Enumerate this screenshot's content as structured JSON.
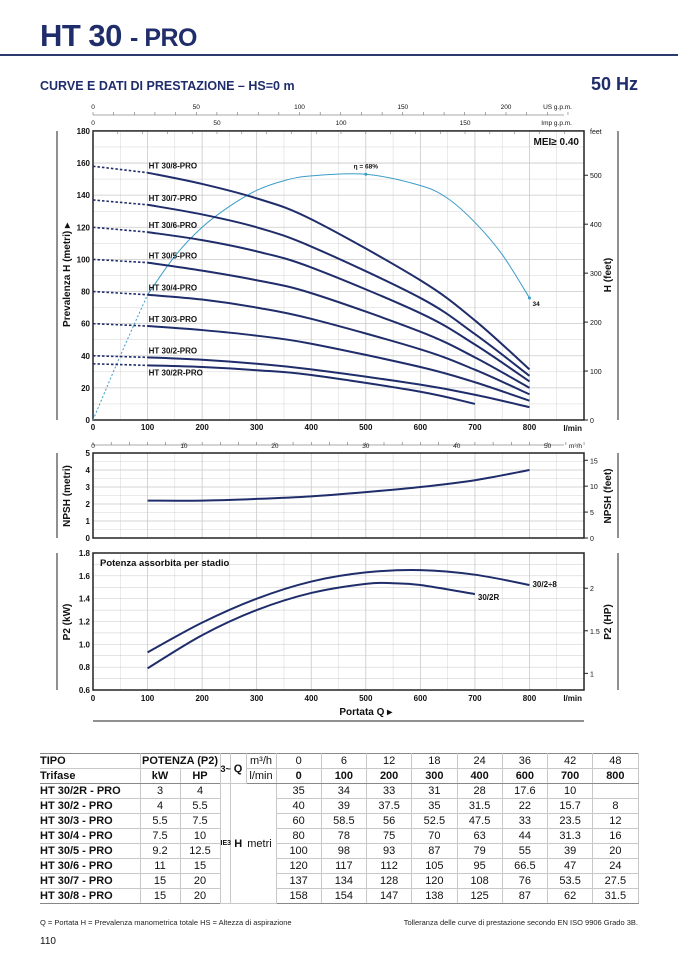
{
  "header": {
    "title_main": "HT 30",
    "title_suffix": "- PRO",
    "subtitle": "CURVE E DATI DI PRESTAZIONE  –  HS=0 m",
    "frequency": "50 Hz"
  },
  "colors": {
    "brand": "#1f2d6b",
    "curve": "#1f2d6b",
    "efficiency": "#3a9cc8",
    "grid": "#c9c9c9"
  },
  "chart_data": [
    {
      "type": "line",
      "ylabel": "Prevalenza H (metri) ▸",
      "ylabel_right": "H (feet)",
      "xlabel_unit": "l/min",
      "xlim": [
        0,
        900
      ],
      "ylim": [
        0,
        180
      ],
      "x_ticks": [
        0,
        100,
        200,
        300,
        400,
        500,
        600,
        700,
        800
      ],
      "y_ticks": [
        0,
        20,
        40,
        60,
        80,
        100,
        120,
        140,
        160,
        180
      ],
      "y_right_ticks": [
        0,
        100,
        200,
        300,
        400,
        500
      ],
      "y_right_unit": "feet",
      "top_axis_us": {
        "unit": "US g.p.m.",
        "ticks": [
          0,
          50,
          100,
          150,
          200
        ]
      },
      "top_axis_imp": {
        "unit": "Imp g.p.m.",
        "ticks": [
          0,
          50,
          100,
          150
        ]
      },
      "annotation": "MEI≥ 0.40",
      "grid": true,
      "x": [
        0,
        100,
        200,
        300,
        400,
        600,
        700,
        800
      ],
      "series": [
        {
          "name": "HT 30/8-PRO",
          "values": [
            158,
            154,
            147,
            138,
            125,
            87,
            62,
            31.5
          ]
        },
        {
          "name": "HT 30/7-PRO",
          "values": [
            137,
            134,
            128,
            120,
            108,
            76,
            53.5,
            27.5
          ]
        },
        {
          "name": "HT 30/6-PRO",
          "values": [
            120,
            117,
            112,
            105,
            95,
            66.5,
            47,
            24
          ]
        },
        {
          "name": "HT 30/5-PRO",
          "values": [
            100,
            98,
            93,
            87,
            79,
            55,
            39,
            20
          ]
        },
        {
          "name": "HT 30/4-PRO",
          "values": [
            80,
            78,
            75,
            70,
            63,
            44,
            31.3,
            16
          ]
        },
        {
          "name": "HT 30/3-PRO",
          "values": [
            60,
            58.5,
            56,
            52.5,
            47.5,
            33,
            23.5,
            12
          ]
        },
        {
          "name": "HT 30/2-PRO",
          "values": [
            40,
            39,
            37.5,
            35,
            31.5,
            22,
            15.7,
            8
          ]
        },
        {
          "name": "HT 30/2R-PRO",
          "values": [
            35,
            34,
            33,
            31,
            28,
            17.6,
            10,
            null
          ]
        }
      ],
      "efficiency": {
        "peak_label": "η = 68%",
        "end_label": "34",
        "x": [
          0,
          50,
          100,
          150,
          200,
          250,
          300,
          350,
          400,
          500,
          600,
          650,
          700,
          750,
          800
        ],
        "values": [
          0,
          40,
          78,
          102,
          120,
          133,
          143,
          149,
          152,
          153,
          146,
          138,
          123,
          103,
          76
        ]
      }
    },
    {
      "type": "line",
      "ylabel": "NPSH (metri)",
      "ylabel_right": "NPSH (feet)",
      "top_axis_m3h": {
        "unit": "m³/h",
        "ticks": [
          0,
          10,
          20,
          30,
          40,
          50
        ]
      },
      "ylim": [
        0,
        5
      ],
      "y_ticks": [
        0,
        1,
        2,
        3,
        4,
        5
      ],
      "y_right_ticks": [
        0,
        5,
        10,
        15
      ],
      "grid": true,
      "x": [
        100,
        200,
        300,
        400,
        500,
        600,
        700,
        800
      ],
      "values": [
        2.2,
        2.2,
        2.3,
        2.45,
        2.7,
        3.0,
        3.4,
        4.0
      ]
    },
    {
      "type": "line",
      "title": "Potenza assorbita per stadio",
      "ylabel": "P2 (kW)",
      "ylabel_right": "P2 (HP)",
      "xlabel": "Portata Q ▸",
      "xlabel_unit": "l/min",
      "x_ticks": [
        0,
        100,
        200,
        300,
        400,
        500,
        600,
        700,
        800
      ],
      "ylim": [
        0.6,
        1.8
      ],
      "y_ticks": [
        "0.6",
        "0.8",
        "1.0",
        "1.2",
        "1.4",
        "1.6",
        "1.8"
      ],
      "y_right_ticks": [
        "1",
        "1.5",
        "2"
      ],
      "grid": true,
      "series": [
        {
          "name": "30/2÷8",
          "x": [
            100,
            200,
            300,
            400,
            500,
            600,
            700,
            800
          ],
          "values": [
            0.93,
            1.19,
            1.4,
            1.55,
            1.63,
            1.65,
            1.61,
            1.52
          ]
        },
        {
          "name": "30/2R",
          "x": [
            100,
            200,
            300,
            400,
            500,
            550,
            600,
            700
          ],
          "values": [
            0.79,
            1.08,
            1.3,
            1.45,
            1.53,
            1.535,
            1.52,
            1.44
          ]
        }
      ]
    }
  ],
  "table": {
    "h_tipo": "TIPO",
    "h_trifase": "Trifase",
    "h_potenza": "POTENZA (P2)",
    "h_kw": "kW",
    "h_hp": "HP",
    "h_phase": "3~",
    "h_q": "Q",
    "h_m3h": "m³/h",
    "h_lmin": "l/min",
    "m3h": [
      "0",
      "6",
      "12",
      "18",
      "24",
      "36",
      "42",
      "48"
    ],
    "lmin": [
      "0",
      "100",
      "200",
      "300",
      "400",
      "600",
      "700",
      "800"
    ],
    "ie3": "IE3",
    "h_h": "H",
    "h_metri": "metri",
    "rows": [
      {
        "tipo": "HT 30/2R - PRO",
        "kw": "3",
        "hp": "4",
        "h": [
          "35",
          "34",
          "33",
          "31",
          "28",
          "17.6",
          "10",
          ""
        ]
      },
      {
        "tipo": "HT 30/2 - PRO",
        "kw": "4",
        "hp": "5.5",
        "h": [
          "40",
          "39",
          "37.5",
          "35",
          "31.5",
          "22",
          "15.7",
          "8"
        ]
      },
      {
        "tipo": "HT 30/3 - PRO",
        "kw": "5.5",
        "hp": "7.5",
        "h": [
          "60",
          "58.5",
          "56",
          "52.5",
          "47.5",
          "33",
          "23.5",
          "12"
        ]
      },
      {
        "tipo": "HT 30/4 - PRO",
        "kw": "7.5",
        "hp": "10",
        "h": [
          "80",
          "78",
          "75",
          "70",
          "63",
          "44",
          "31.3",
          "16"
        ]
      },
      {
        "tipo": "HT 30/5 - PRO",
        "kw": "9.2",
        "hp": "12.5",
        "h": [
          "100",
          "98",
          "93",
          "87",
          "79",
          "55",
          "39",
          "20"
        ]
      },
      {
        "tipo": "HT 30/6 - PRO",
        "kw": "11",
        "hp": "15",
        "h": [
          "120",
          "117",
          "112",
          "105",
          "95",
          "66.5",
          "47",
          "24"
        ]
      },
      {
        "tipo": "HT 30/7 - PRO",
        "kw": "15",
        "hp": "20",
        "h": [
          "137",
          "134",
          "128",
          "120",
          "108",
          "76",
          "53.5",
          "27.5"
        ]
      },
      {
        "tipo": "HT 30/8 - PRO",
        "kw": "15",
        "hp": "20",
        "h": [
          "158",
          "154",
          "147",
          "138",
          "125",
          "87",
          "62",
          "31.5"
        ]
      }
    ]
  },
  "footer": {
    "legend": "Q = Portata   H = Prevalenza manometrica totale   HS = Altezza di aspirazione",
    "tolerance": "Tolleranza delle curve di prestazione secondo EN ISO 9906 Grado 3B.",
    "page_number": "110"
  }
}
